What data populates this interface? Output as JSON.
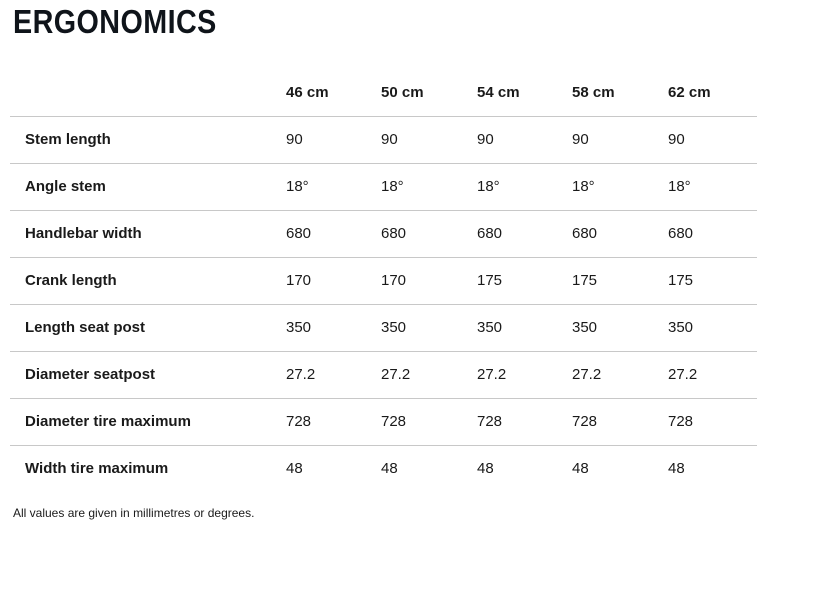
{
  "title": "ERGONOMICS",
  "table": {
    "columns": [
      "46 cm",
      "50 cm",
      "54 cm",
      "58 cm",
      "62 cm"
    ],
    "rows": [
      {
        "label": "Stem length",
        "values": [
          "90",
          "90",
          "90",
          "90",
          "90"
        ]
      },
      {
        "label": "Angle stem",
        "values": [
          "18°",
          "18°",
          "18°",
          "18°",
          "18°"
        ]
      },
      {
        "label": "Handlebar width",
        "values": [
          "680",
          "680",
          "680",
          "680",
          "680"
        ]
      },
      {
        "label": "Crank length",
        "values": [
          "170",
          "170",
          "175",
          "175",
          "175"
        ]
      },
      {
        "label": "Length seat post",
        "values": [
          "350",
          "350",
          "350",
          "350",
          "350"
        ]
      },
      {
        "label": "Diameter seatpost",
        "values": [
          "27.2",
          "27.2",
          "27.2",
          "27.2",
          "27.2"
        ]
      },
      {
        "label": "Diameter tire maximum",
        "values": [
          "728",
          "728",
          "728",
          "728",
          "728"
        ]
      },
      {
        "label": "Width tire maximum",
        "values": [
          "48",
          "48",
          "48",
          "48",
          "48"
        ]
      }
    ]
  },
  "footnote": "All values are given in millimetres or degrees.",
  "colors": {
    "title": "#0f141a",
    "text": "#1a1a1a",
    "divider": "#c8c8c8",
    "background": "#ffffff"
  }
}
